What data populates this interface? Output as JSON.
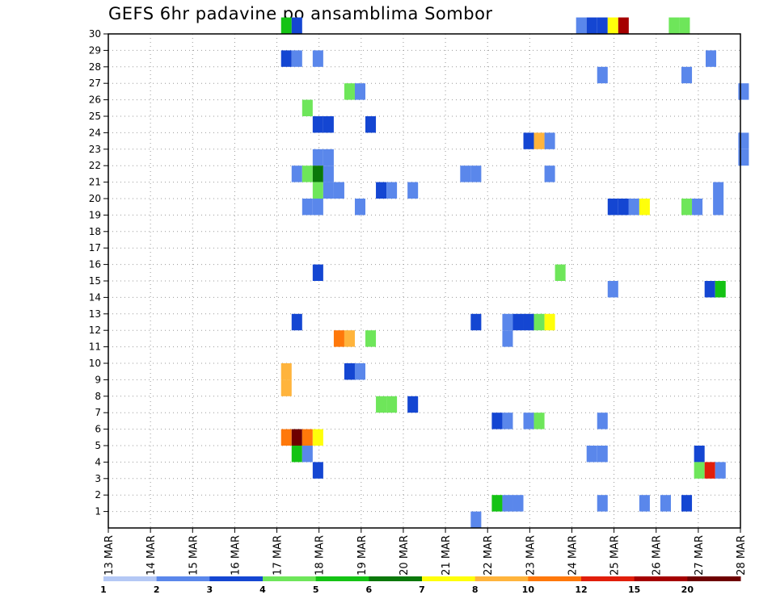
{
  "chart_data": {
    "type": "heatmap",
    "title": "GEFS 6hr padavine po ansamblima Sombor",
    "xlabel": "",
    "ylabel": "",
    "ylim": [
      0,
      30
    ],
    "xlim": [
      0,
      60
    ],
    "y_ticks": [
      "1",
      "2",
      "3",
      "4",
      "5",
      "6",
      "7",
      "8",
      "9",
      "10",
      "11",
      "12",
      "13",
      "14",
      "15",
      "16",
      "17",
      "18",
      "19",
      "20",
      "21",
      "22",
      "23",
      "24",
      "25",
      "26",
      "27",
      "28",
      "29",
      "30"
    ],
    "x_ticks": [
      "13 MAR",
      "14 MAR",
      "15 MAR",
      "16 MAR",
      "17 MAR",
      "18 MAR",
      "19 MAR",
      "20 MAR",
      "21 MAR",
      "22 MAR",
      "23 MAR",
      "24 MAR",
      "25 MAR",
      "26 MAR",
      "27 MAR",
      "28 MAR"
    ],
    "x_tick_steps": [
      0,
      4,
      8,
      12,
      16,
      20,
      24,
      28,
      32,
      36,
      40,
      44,
      48,
      52,
      56,
      60
    ],
    "grid": true,
    "colors": [
      "#b4c8f5",
      "#5a87eb",
      "#1446d2",
      "#6ee65a",
      "#14c314",
      "#0a780a",
      "#ffff0a",
      "#ffb43c",
      "#ff780a",
      "#e11e0a",
      "#a50000",
      "#6e0000"
    ],
    "legend_labels": [
      "1",
      "2",
      "3",
      "4",
      "5",
      "6",
      "7",
      "8",
      "10",
      "12",
      "15",
      "20"
    ],
    "legend_label_positions": [
      0,
      1,
      2,
      3,
      4,
      5,
      6,
      7,
      8,
      9,
      10,
      11
    ],
    "cells": [
      [
        16.4,
        30,
        4
      ],
      [
        17.4,
        30,
        2
      ],
      [
        44.4,
        30,
        1
      ],
      [
        45.4,
        30,
        2
      ],
      [
        46.4,
        30,
        2
      ],
      [
        47.4,
        30,
        6
      ],
      [
        48.4,
        30,
        10
      ],
      [
        53.2,
        30,
        3
      ],
      [
        54.2,
        30,
        3
      ],
      [
        16.4,
        28,
        2
      ],
      [
        17.4,
        28,
        1
      ],
      [
        19.4,
        28,
        1
      ],
      [
        56.7,
        28,
        1
      ],
      [
        46.4,
        27,
        1
      ],
      [
        54.4,
        27,
        1
      ],
      [
        22.4,
        26,
        3
      ],
      [
        23.4,
        26,
        1
      ],
      [
        59.8,
        26,
        1
      ],
      [
        18.4,
        25,
        3
      ],
      [
        19.4,
        24,
        2
      ],
      [
        20.4,
        24,
        2
      ],
      [
        24.4,
        24,
        2
      ],
      [
        39.4,
        23,
        2
      ],
      [
        40.4,
        23,
        7
      ],
      [
        41.4,
        23,
        1
      ],
      [
        59.8,
        23,
        1
      ],
      [
        19.4,
        22,
        1
      ],
      [
        20.4,
        22,
        1
      ],
      [
        59.8,
        22,
        1
      ],
      [
        17.4,
        21,
        1
      ],
      [
        18.4,
        21,
        3
      ],
      [
        19.4,
        21,
        5
      ],
      [
        20.4,
        21,
        1
      ],
      [
        33.4,
        21,
        1
      ],
      [
        34.4,
        21,
        1
      ],
      [
        41.4,
        21,
        1
      ],
      [
        19.4,
        20,
        3
      ],
      [
        20.4,
        20,
        1
      ],
      [
        21.4,
        20,
        1
      ],
      [
        25.4,
        20,
        2
      ],
      [
        26.4,
        20,
        1
      ],
      [
        28.4,
        20,
        1
      ],
      [
        57.4,
        20,
        1
      ],
      [
        18.4,
        19,
        1
      ],
      [
        19.4,
        19,
        1
      ],
      [
        23.4,
        19,
        1
      ],
      [
        47.4,
        19,
        2
      ],
      [
        48.4,
        19,
        2
      ],
      [
        49.4,
        19,
        1
      ],
      [
        50.4,
        19,
        6
      ],
      [
        54.4,
        19,
        3
      ],
      [
        55.4,
        19,
        1
      ],
      [
        57.4,
        19,
        1
      ],
      [
        19.4,
        15,
        2
      ],
      [
        42.4,
        15,
        3
      ],
      [
        47.4,
        14,
        1
      ],
      [
        56.6,
        14,
        2
      ],
      [
        57.6,
        14,
        4
      ],
      [
        17.4,
        12,
        2
      ],
      [
        34.4,
        12,
        2
      ],
      [
        37.4,
        12,
        1
      ],
      [
        38.4,
        12,
        2
      ],
      [
        39.4,
        12,
        2
      ],
      [
        40.4,
        12,
        3
      ],
      [
        41.4,
        12,
        6
      ],
      [
        21.4,
        11,
        8
      ],
      [
        22.4,
        11,
        7
      ],
      [
        24.4,
        11,
        3
      ],
      [
        37.4,
        11,
        1
      ],
      [
        16.4,
        9,
        7
      ],
      [
        16.4,
        8,
        7
      ],
      [
        22.4,
        9,
        2
      ],
      [
        23.4,
        9,
        1
      ],
      [
        25.4,
        7,
        3
      ],
      [
        26.4,
        7,
        3
      ],
      [
        28.4,
        7,
        2
      ],
      [
        36.4,
        6,
        2
      ],
      [
        37.4,
        6,
        1
      ],
      [
        39.4,
        6,
        1
      ],
      [
        40.4,
        6,
        3
      ],
      [
        46.4,
        6,
        1
      ],
      [
        16.4,
        5,
        8
      ],
      [
        17.4,
        5,
        11
      ],
      [
        18.4,
        5,
        8
      ],
      [
        19.4,
        5,
        6
      ],
      [
        17.4,
        4,
        4
      ],
      [
        18.4,
        4,
        1
      ],
      [
        45.4,
        4,
        1
      ],
      [
        46.4,
        4,
        1
      ],
      [
        55.6,
        4,
        2
      ],
      [
        19.4,
        3,
        2
      ],
      [
        55.6,
        3,
        3
      ],
      [
        56.6,
        3,
        9
      ],
      [
        57.6,
        3,
        1
      ],
      [
        36.4,
        1,
        4
      ],
      [
        37.4,
        1,
        1
      ],
      [
        38.4,
        1,
        1
      ],
      [
        46.4,
        1,
        1
      ],
      [
        50.4,
        1,
        1
      ],
      [
        52.4,
        1,
        1
      ],
      [
        54.4,
        1,
        2
      ],
      [
        34.4,
        0,
        1
      ]
    ]
  }
}
